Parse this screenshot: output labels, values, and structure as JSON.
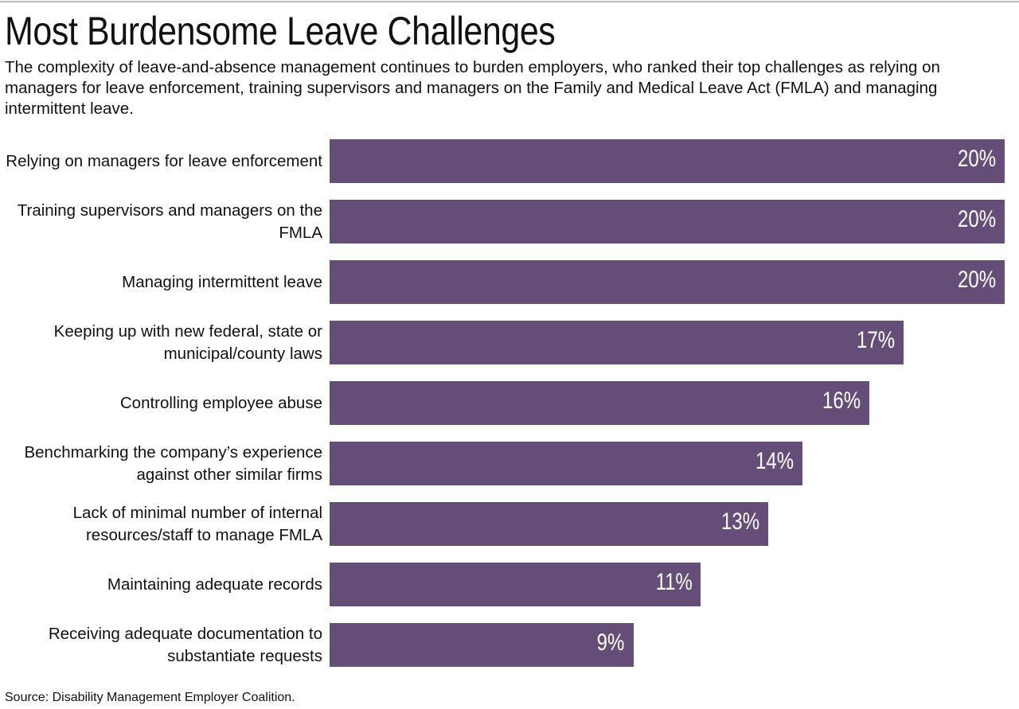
{
  "title": "Most Burdensome Leave Challenges",
  "subtitle": "The complexity of leave-and-absence management continues to burden employers, who ranked their top challenges as relying on managers for leave enforcement, training supervisors and managers on the Family and Medical Leave Act (FMLA) and managing intermittent leave.",
  "source": "Source: Disability Management Employer Coalition.",
  "colors": {
    "bar": "#644d76",
    "text": "#111111"
  },
  "chart_data": {
    "type": "bar",
    "orientation": "horizontal",
    "title": "Most Burdensome Leave Challenges",
    "xlabel": "",
    "ylabel": "",
    "xlim": [
      0,
      20
    ],
    "grid": false,
    "categories": [
      "Relying on managers for leave enforcement",
      "Training supervisors and managers on the FMLA",
      "Managing intermittent leave",
      "Keeping up with new federal, state or municipal/county laws",
      "Controlling employee abuse",
      "Benchmarking the company’s experience against other similar firms",
      "Lack of minimal number of internal resources/staff to manage FMLA",
      "Maintaining adequate records",
      "Receiving adequate documentation to substantiate requests"
    ],
    "values": [
      20,
      20,
      20,
      17,
      16,
      14,
      13,
      11,
      9
    ],
    "data_labels": [
      "20%",
      "20%",
      "20%",
      "17%",
      "16%",
      "14%",
      "13%",
      "11%",
      "9%"
    ]
  }
}
